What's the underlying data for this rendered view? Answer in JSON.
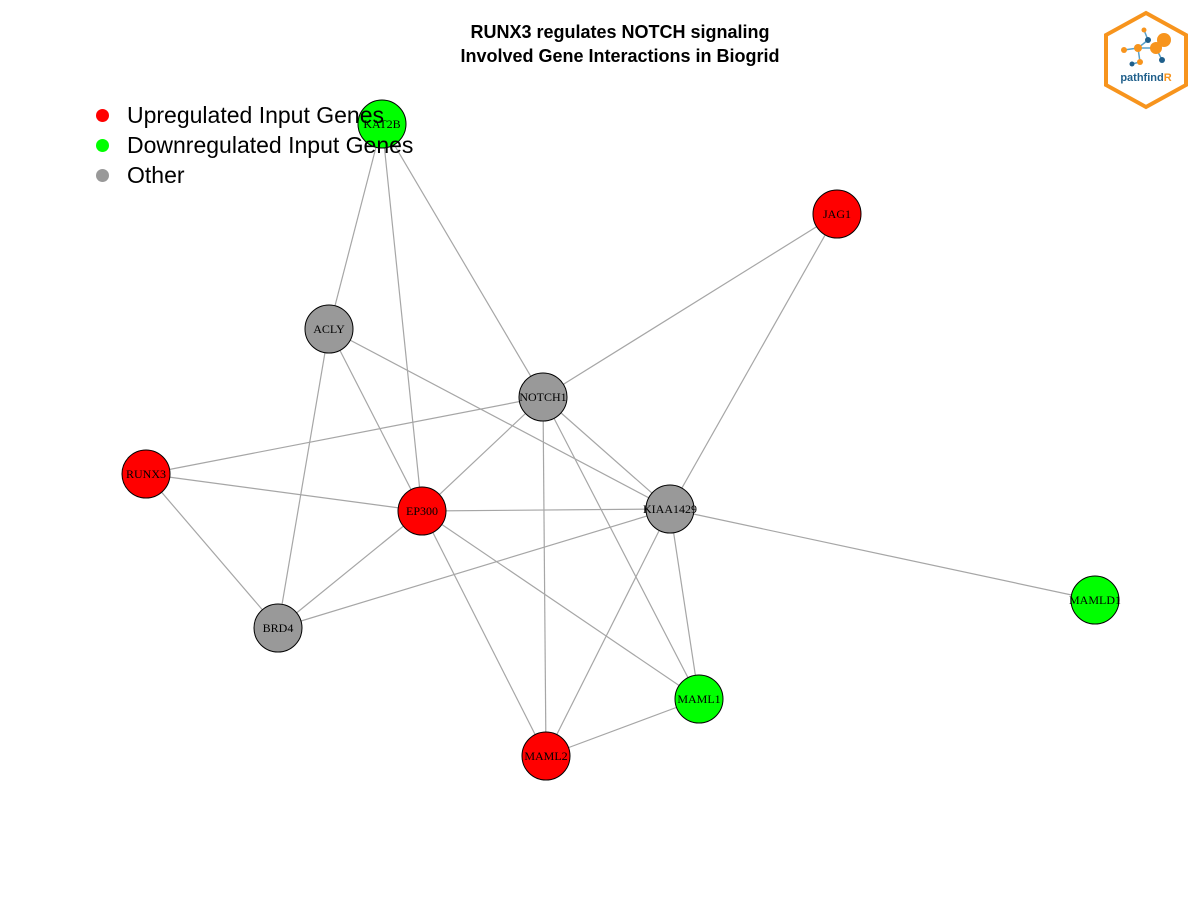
{
  "title": {
    "line1": "RUNX3 regulates NOTCH signaling",
    "line2": "Involved Gene Interactions in Biogrid"
  },
  "legend": [
    {
      "label": "Upregulated Input Genes",
      "color": "#ff0000"
    },
    {
      "label": "Downregulated Input Genes",
      "color": "#00ff00"
    },
    {
      "label": "Other",
      "color": "#999999"
    }
  ],
  "colors": {
    "up": "#ff0000",
    "down": "#00ff00",
    "other": "#999999",
    "edge": "#a6a6a6",
    "node_border": "#000000"
  },
  "nodes": [
    {
      "id": "KAT2B",
      "status": "down"
    },
    {
      "id": "JAG1",
      "status": "up"
    },
    {
      "id": "ACLY",
      "status": "other"
    },
    {
      "id": "NOTCH1",
      "status": "other"
    },
    {
      "id": "RUNX3",
      "status": "up"
    },
    {
      "id": "EP300",
      "status": "up"
    },
    {
      "id": "KIAA1429",
      "status": "other"
    },
    {
      "id": "MAMLD1",
      "status": "down"
    },
    {
      "id": "BRD4",
      "status": "other"
    },
    {
      "id": "MAML1",
      "status": "down"
    },
    {
      "id": "MAML2",
      "status": "up"
    }
  ],
  "edges": [
    [
      "KAT2B",
      "ACLY"
    ],
    [
      "KAT2B",
      "EP300"
    ],
    [
      "KAT2B",
      "NOTCH1"
    ],
    [
      "JAG1",
      "NOTCH1"
    ],
    [
      "JAG1",
      "KIAA1429"
    ],
    [
      "ACLY",
      "EP300"
    ],
    [
      "ACLY",
      "KIAA1429"
    ],
    [
      "ACLY",
      "BRD4"
    ],
    [
      "NOTCH1",
      "RUNX3"
    ],
    [
      "NOTCH1",
      "EP300"
    ],
    [
      "NOTCH1",
      "KIAA1429"
    ],
    [
      "NOTCH1",
      "MAML1"
    ],
    [
      "NOTCH1",
      "MAML2"
    ],
    [
      "RUNX3",
      "EP300"
    ],
    [
      "RUNX3",
      "BRD4"
    ],
    [
      "EP300",
      "KIAA1429"
    ],
    [
      "EP300",
      "BRD4"
    ],
    [
      "EP300",
      "MAML1"
    ],
    [
      "EP300",
      "MAML2"
    ],
    [
      "KIAA1429",
      "MAMLD1"
    ],
    [
      "KIAA1429",
      "BRD4"
    ],
    [
      "KIAA1429",
      "MAML1"
    ],
    [
      "KIAA1429",
      "MAML2"
    ],
    [
      "MAML1",
      "MAML2"
    ]
  ],
  "logo": {
    "text_main": "pathfind",
    "text_accent": "R",
    "border_color": "#f7941d",
    "accent_color": "#f7941d",
    "text_color": "#1f5f8b"
  }
}
